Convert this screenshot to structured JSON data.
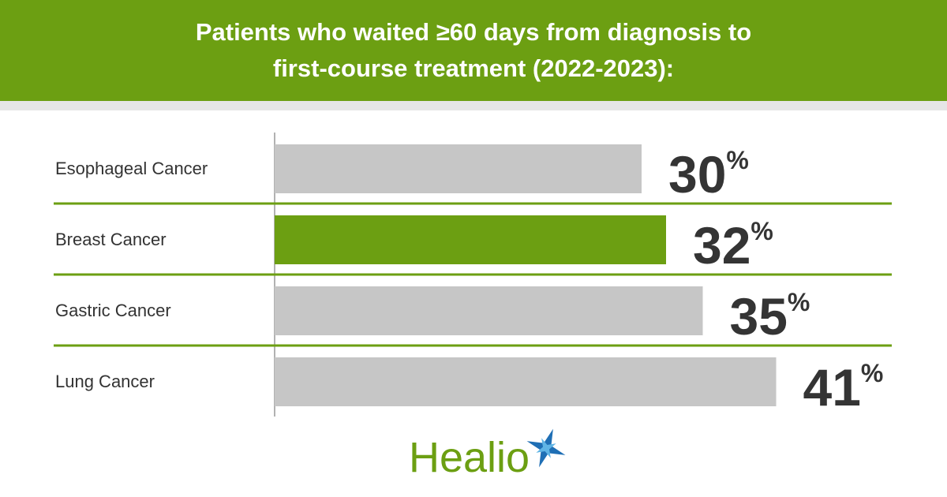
{
  "chart_data": {
    "type": "bar",
    "orientation": "horizontal",
    "title": "Patients who waited ≥60 days from diagnosis to first-course treatment (2022-2023):",
    "categories": [
      "Esophageal Cancer",
      "Breast Cancer",
      "Gastric Cancer",
      "Lung Cancer"
    ],
    "values": [
      30,
      32,
      35,
      41
    ],
    "value_labels": [
      "30%",
      "32%",
      "35%",
      "41%"
    ],
    "colors": [
      "#c6c6c6",
      "#6c9f12",
      "#c6c6c6",
      "#c6c6c6"
    ],
    "xlim": [
      0,
      50
    ]
  },
  "logo": "Healio"
}
